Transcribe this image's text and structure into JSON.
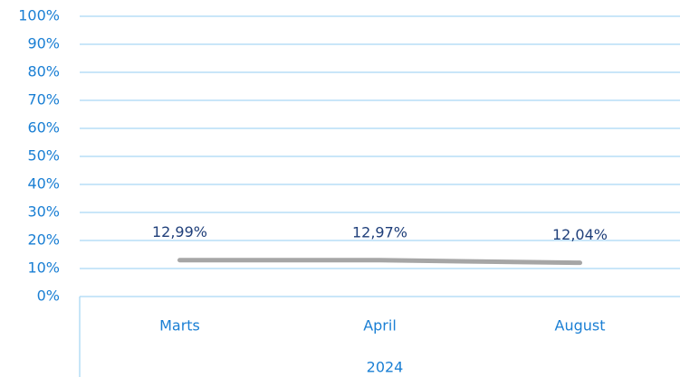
{
  "chart_data": {
    "type": "line",
    "categories": [
      "Marts",
      "April",
      "August"
    ],
    "xlabel": "2024",
    "values": [
      12.99,
      12.97,
      12.04
    ],
    "value_labels": [
      "12,99%",
      "12,97%",
      "12,04%"
    ],
    "color": "#a6a6a6",
    "ylim": [
      0,
      100
    ],
    "yticks": [
      {
        "value": 0,
        "label": "0%"
      },
      {
        "value": 10,
        "label": "10%"
      },
      {
        "value": 20,
        "label": "20%"
      },
      {
        "value": 30,
        "label": "30%"
      },
      {
        "value": 40,
        "label": "40%"
      },
      {
        "value": 50,
        "label": "50%"
      },
      {
        "value": 60,
        "label": "60%"
      },
      {
        "value": 70,
        "label": "70%"
      },
      {
        "value": 80,
        "label": "80%"
      },
      {
        "value": 90,
        "label": "90%"
      },
      {
        "value": 100,
        "label": "100%"
      }
    ],
    "grid": true
  }
}
